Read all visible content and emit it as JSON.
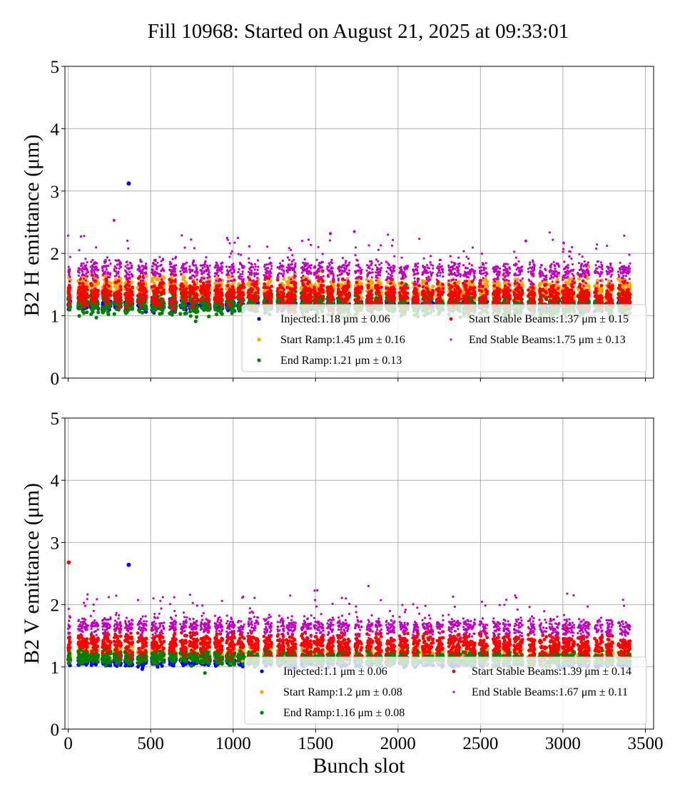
{
  "figure": {
    "title": "Fill 10968: Started on August 21, 2025 at 09:33:01",
    "xlabel": "Bunch slot"
  },
  "colors": {
    "Injected": "#0000ff",
    "Start Ramp": "#ffa500",
    "End Ramp": "#008000",
    "Start Stable Beams": "#ff0000",
    "End Stable Beams": "#c000c0"
  },
  "chart_data": [
    {
      "type": "scatter",
      "ylabel": "B2 H emittance (μm)",
      "xlim": [
        -20,
        3550
      ],
      "ylim": [
        0,
        5
      ],
      "xticks": [
        0,
        500,
        1000,
        1500,
        2000,
        2500,
        3000,
        3500
      ],
      "yticks": [
        0,
        1,
        2,
        3,
        4,
        5
      ],
      "grid": true,
      "legend_position": "lower-right",
      "series": [
        {
          "name": "Injected",
          "legend": "Injected:1.18 μm ± 0.06",
          "mean": 1.18,
          "std": 0.06,
          "outliers": [
            [
              367,
              3.12
            ]
          ]
        },
        {
          "name": "Start Ramp",
          "legend": "Start Ramp:1.45 μm ± 0.16",
          "mean": 1.45,
          "std": 0.16
        },
        {
          "name": "End Ramp",
          "legend": "End Ramp:1.21 μm ± 0.13",
          "mean": 1.21,
          "std": 0.13
        },
        {
          "name": "Start Stable Beams",
          "legend": "Start Stable Beams:1.37 μm ± 0.15",
          "mean": 1.37,
          "std": 0.15
        },
        {
          "name": "End Stable Beams",
          "legend": "End Stable Beams:1.75 μm ± 0.13",
          "mean": 1.75,
          "std": 0.13,
          "outliers": [
            [
              278,
              2.53
            ],
            [
              1590,
              2.32
            ],
            [
              1735,
              2.35
            ],
            [
              2775,
              2.2
            ]
          ]
        }
      ]
    },
    {
      "type": "scatter",
      "ylabel": "B2 V emittance (μm)",
      "xlim": [
        -20,
        3550
      ],
      "ylim": [
        0,
        5
      ],
      "xticks": [
        0,
        500,
        1000,
        1500,
        2000,
        2500,
        3000,
        3500
      ],
      "yticks": [
        0,
        1,
        2,
        3,
        4,
        5
      ],
      "grid": true,
      "legend_position": "lower-right",
      "series": [
        {
          "name": "Injected",
          "legend": "Injected:1.1 μm ± 0.06",
          "mean": 1.1,
          "std": 0.06,
          "outliers": [
            [
              367,
              2.64
            ]
          ]
        },
        {
          "name": "Start Ramp",
          "legend": "Start Ramp:1.2 μm ± 0.08",
          "mean": 1.2,
          "std": 0.08
        },
        {
          "name": "End Ramp",
          "legend": "End Ramp:1.16 μm ± 0.08",
          "mean": 1.16,
          "std": 0.08
        },
        {
          "name": "Start Stable Beams",
          "legend": "Start Stable Beams:1.39 μm ± 0.14",
          "mean": 1.39,
          "std": 0.14,
          "outliers": [
            [
              3,
              2.68
            ]
          ]
        },
        {
          "name": "End Stable Beams",
          "legend": "End Stable Beams:1.67 μm ± 0.11",
          "mean": 1.67,
          "std": 0.11
        }
      ]
    }
  ]
}
